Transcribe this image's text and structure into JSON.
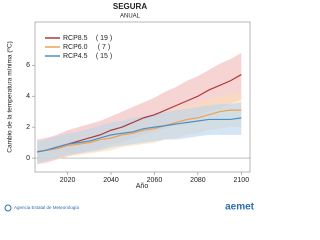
{
  "chart_data": {
    "type": "line",
    "title": "SEGURA",
    "subtitle": "ANUAL",
    "x_label": "Año",
    "y_label": "Cambio de la temperatura mínima (ºC)",
    "x": [
      2006,
      2010,
      2015,
      2020,
      2025,
      2030,
      2035,
      2040,
      2045,
      2050,
      2055,
      2060,
      2065,
      2070,
      2075,
      2080,
      2085,
      2090,
      2095,
      2100
    ],
    "series": [
      {
        "name": "RCP8.5",
        "members_label": "( 19 )",
        "color": "#b03a3a",
        "band_color": "#f2b8b8",
        "values": [
          0.4,
          0.5,
          0.7,
          0.9,
          1.1,
          1.3,
          1.5,
          1.8,
          2.0,
          2.3,
          2.6,
          2.8,
          3.1,
          3.4,
          3.7,
          4.0,
          4.4,
          4.7,
          5.0,
          5.4
        ],
        "lower": [
          -0.4,
          -0.3,
          -0.1,
          0.1,
          0.3,
          0.5,
          0.6,
          0.9,
          1.0,
          1.3,
          1.5,
          1.7,
          1.9,
          2.2,
          2.4,
          2.7,
          3.0,
          3.2,
          3.5,
          3.8
        ],
        "upper": [
          1.2,
          1.3,
          1.5,
          1.8,
          2.0,
          2.2,
          2.4,
          2.7,
          3.0,
          3.3,
          3.6,
          3.9,
          4.3,
          4.6,
          5.0,
          5.3,
          5.7,
          6.1,
          6.4,
          6.8
        ]
      },
      {
        "name": "RCP6.0",
        "members_label": "( 7 )",
        "color": "#f0a050",
        "band_color": "#fbdcb8",
        "values": [
          0.4,
          0.5,
          0.6,
          0.8,
          0.9,
          1.0,
          1.2,
          1.3,
          1.5,
          1.6,
          1.8,
          1.9,
          2.1,
          2.3,
          2.5,
          2.6,
          2.8,
          3.0,
          3.1,
          3.1
        ],
        "lower": [
          -0.3,
          -0.2,
          -0.1,
          0.1,
          0.2,
          0.3,
          0.4,
          0.5,
          0.7,
          0.8,
          0.9,
          1.0,
          1.2,
          1.3,
          1.5,
          1.6,
          1.8,
          1.9,
          2.0,
          2.0
        ],
        "upper": [
          1.1,
          1.2,
          1.3,
          1.5,
          1.6,
          1.7,
          1.9,
          2.1,
          2.3,
          2.4,
          2.6,
          2.8,
          3.0,
          3.2,
          3.4,
          3.6,
          3.8,
          4.0,
          4.1,
          4.2
        ]
      },
      {
        "name": "RCP4.5",
        "members_label": "( 15 )",
        "color": "#4a90c8",
        "band_color": "#b8d6ee",
        "values": [
          0.4,
          0.5,
          0.7,
          0.9,
          1.0,
          1.1,
          1.3,
          1.5,
          1.6,
          1.7,
          1.9,
          2.0,
          2.1,
          2.2,
          2.3,
          2.4,
          2.5,
          2.5,
          2.5,
          2.6
        ],
        "lower": [
          -0.3,
          -0.2,
          0.0,
          0.2,
          0.3,
          0.4,
          0.5,
          0.7,
          0.8,
          0.9,
          1.0,
          1.1,
          1.2,
          1.2,
          1.3,
          1.4,
          1.5,
          1.5,
          1.5,
          1.5
        ],
        "upper": [
          1.1,
          1.2,
          1.4,
          1.6,
          1.7,
          1.9,
          2.1,
          2.3,
          2.4,
          2.6,
          2.7,
          2.9,
          3.0,
          3.1,
          3.2,
          3.3,
          3.4,
          3.5,
          3.5,
          3.6
        ]
      }
    ],
    "xlim": [
      2005,
      2104
    ],
    "ylim": [
      -0.9,
      8.8
    ],
    "xticks": [
      2020,
      2040,
      2060,
      2080,
      2100
    ],
    "yticks": [
      0,
      2,
      4,
      6
    ],
    "zero_line": true,
    "legend": "upper left"
  },
  "footer": {
    "agency": "Agencia Estatal de Meteorología",
    "brand": "aemet"
  }
}
